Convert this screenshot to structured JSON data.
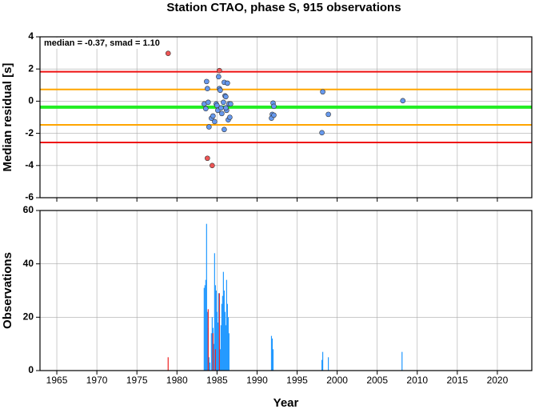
{
  "chart_data": [
    {
      "type": "scatter",
      "title": "Station CTAO, phase S, 915 observations",
      "annotation": "median = -0.37, smad = 1.10",
      "y_label": "Median residual [s]",
      "xlim": [
        1962.9,
        2024.3
      ],
      "xticks": [
        1965,
        1970,
        1975,
        1980,
        1985,
        1990,
        1995,
        2000,
        2005,
        2010,
        2015,
        2020
      ],
      "ylim": [
        -6,
        4
      ],
      "yticks": [
        -6,
        -4,
        -2,
        0,
        2,
        4
      ],
      "grid": true,
      "reference_lines": [
        {
          "value": -0.37,
          "color": "#22ee22",
          "width": 4
        },
        {
          "value": 0.73,
          "color": "#ffa500",
          "width": 2
        },
        {
          "value": -1.47,
          "color": "#ffa500",
          "width": 2
        },
        {
          "value": 1.83,
          "color": "#ee1111",
          "width": 2
        },
        {
          "value": -2.57,
          "color": "#ee1111",
          "width": 2
        }
      ],
      "series": [
        {
          "color": "#6699ee",
          "x": [
            1983.8,
            1983.7,
            1983.4,
            1983.6,
            1983.9,
            1984.0,
            1984.3,
            1984.5,
            1984.7,
            1984.9,
            1985.0,
            1985.1,
            1985.2,
            1985.3,
            1985.4,
            1985.5,
            1985.6,
            1985.8,
            1985.9,
            1986.0,
            1986.1,
            1986.2,
            1986.3,
            1986.4,
            1986.5,
            1986.7,
            1985.9,
            1986.1,
            1986.6,
            1992.0,
            1992.1,
            1991.9,
            1991.8,
            1992.1,
            1998.2,
            1998.1,
            1998.9,
            2008.2
          ],
          "values": [
            0.78,
            1.22,
            -0.17,
            -0.47,
            -0.07,
            -1.6,
            -1.06,
            -0.92,
            -1.27,
            -0.17,
            -0.27,
            -0.57,
            1.52,
            0.78,
            0.68,
            -0.42,
            -0.77,
            -0.07,
            1.17,
            0.33,
            0.28,
            -0.57,
            1.12,
            -1.16,
            -0.17,
            -0.17,
            -1.76,
            -0.42,
            -1.0,
            -0.12,
            -0.32,
            -0.82,
            -1.06,
            -0.87,
            0.58,
            -1.96,
            -0.82,
            0.03
          ]
        },
        {
          "color": "#ee5555",
          "x": [
            1978.9,
            1983.8,
            1984.4,
            1985.3
          ],
          "values": [
            2.97,
            -3.55,
            -4.0,
            1.9
          ]
        }
      ]
    },
    {
      "type": "histogram",
      "x_label": "Year",
      "y_label": "Observations",
      "xlim": [
        1962.9,
        2024.3
      ],
      "xticks": [
        1965,
        1970,
        1975,
        1980,
        1985,
        1990,
        1995,
        2000,
        2005,
        2010,
        2015,
        2020
      ],
      "ylim": [
        0,
        60
      ],
      "yticks": [
        0,
        20,
        40,
        60
      ],
      "grid": true,
      "series": [
        {
          "color": "#2299ff",
          "x": [
            1983.4,
            1983.5,
            1983.6,
            1983.7,
            1983.8,
            1983.9,
            1984.0,
            1984.1,
            1984.3,
            1984.4,
            1984.5,
            1984.6,
            1984.7,
            1984.8,
            1984.9,
            1985.0,
            1985.1,
            1985.2,
            1985.3,
            1985.4,
            1985.5,
            1985.6,
            1985.7,
            1985.8,
            1985.9,
            1986.0,
            1986.1,
            1986.2,
            1986.3,
            1986.4,
            1986.5,
            1991.8,
            1991.9,
            1992.0,
            1998.1,
            1998.2,
            1998.9,
            2008.1
          ],
          "values": [
            31,
            32,
            34,
            55,
            22,
            16,
            5,
            3,
            14,
            20,
            16,
            10,
            44,
            32,
            30,
            22,
            18,
            29,
            12,
            8,
            17,
            25,
            28,
            37,
            30,
            22,
            17,
            34,
            25,
            20,
            14,
            13,
            12,
            8,
            4,
            7,
            5,
            7
          ]
        },
        {
          "color": "#ee2222",
          "x": [
            1978.9,
            1983.9,
            1984.5,
            1984.8,
            1985.3
          ],
          "values": [
            5,
            23,
            14,
            8,
            29
          ]
        }
      ]
    }
  ]
}
